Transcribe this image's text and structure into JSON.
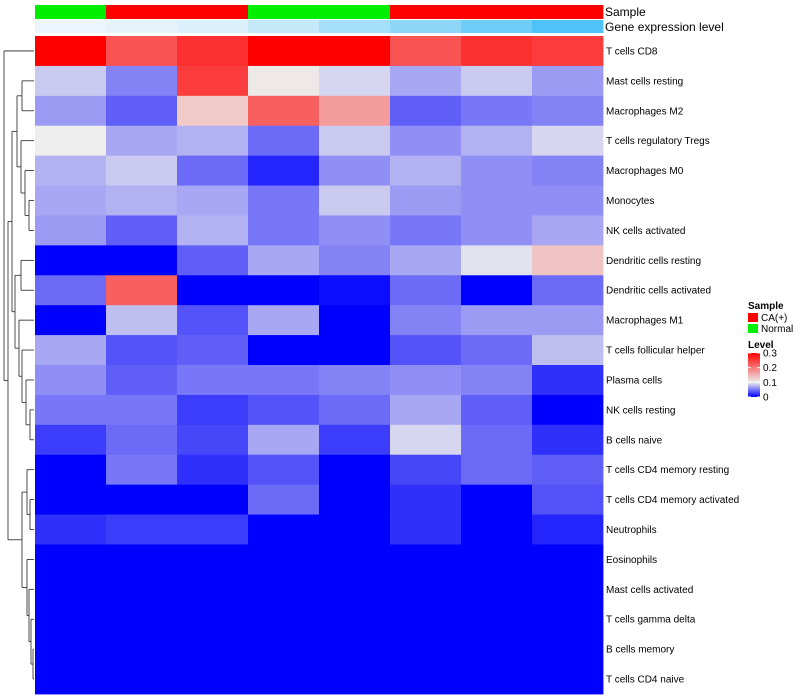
{
  "chart_data": {
    "type": "heatmap",
    "annotation_tracks": [
      {
        "name": "Sample",
        "values": [
          "Normal",
          "CA(+)",
          "CA(+)",
          "Normal",
          "Normal",
          "CA(+)",
          "CA(+)",
          "CA(+)"
        ]
      },
      {
        "name": "Gene expression level",
        "values": [
          0.02,
          0.05,
          0.12,
          0.25,
          0.45,
          0.6,
          0.8,
          1.0
        ]
      }
    ],
    "rows": [
      "T cells CD8",
      "Mast cells resting",
      "Macrophages M2",
      "T cells regulatory  Tregs",
      "Macrophages M0",
      "Monocytes",
      "NK cells activated",
      "Dendritic cells resting",
      "Dendritic cells activated",
      "Macrophages M1",
      "T cells follicular helper",
      "Plasma cells",
      "NK cells resting",
      "B cells naive",
      "T cells CD4 memory resting",
      "T cells CD4 memory activated",
      "Neutrophils",
      "Eosinophils",
      "Mast cells activated",
      "T cells gamma delta",
      "B cells memory",
      "T cells CD4 naive"
    ],
    "values": [
      [
        0.3,
        0.23,
        0.26,
        0.3,
        0.3,
        0.23,
        0.26,
        0.25
      ],
      [
        0.085,
        0.055,
        0.25,
        0.105,
        0.09,
        0.07,
        0.085,
        0.065
      ],
      [
        0.065,
        0.04,
        0.13,
        0.22,
        0.17,
        0.04,
        0.05,
        0.055
      ],
      [
        0.1,
        0.07,
        0.075,
        0.045,
        0.085,
        0.06,
        0.075,
        0.09
      ],
      [
        0.075,
        0.085,
        0.045,
        0.015,
        0.06,
        0.075,
        0.06,
        0.055
      ],
      [
        0.07,
        0.075,
        0.07,
        0.05,
        0.085,
        0.065,
        0.06,
        0.06
      ],
      [
        0.065,
        0.04,
        0.075,
        0.05,
        0.06,
        0.05,
        0.06,
        0.07
      ],
      [
        0.0,
        0.0,
        0.04,
        0.07,
        0.055,
        0.07,
        0.095,
        0.135
      ],
      [
        0.045,
        0.22,
        0.0,
        0.0,
        0.005,
        0.045,
        0.0,
        0.045
      ],
      [
        0.0,
        0.08,
        0.035,
        0.07,
        0.0,
        0.055,
        0.065,
        0.065
      ],
      [
        0.07,
        0.035,
        0.04,
        0.0,
        0.0,
        0.035,
        0.045,
        0.08
      ],
      [
        0.06,
        0.04,
        0.05,
        0.05,
        0.055,
        0.06,
        0.055,
        0.02
      ],
      [
        0.05,
        0.05,
        0.025,
        0.035,
        0.045,
        0.07,
        0.04,
        0.0
      ],
      [
        0.025,
        0.045,
        0.03,
        0.07,
        0.025,
        0.09,
        0.045,
        0.02
      ],
      [
        0.0,
        0.05,
        0.02,
        0.035,
        0.0,
        0.03,
        0.045,
        0.04
      ],
      [
        0.0,
        0.0,
        0.0,
        0.045,
        0.0,
        0.02,
        0.0,
        0.035
      ],
      [
        0.02,
        0.025,
        0.025,
        0.0,
        0.0,
        0.02,
        0.0,
        0.015
      ],
      [
        0.0,
        0.0,
        0.0,
        0.0,
        0.0,
        0.0,
        0.0,
        0.0
      ],
      [
        0.0,
        0.0,
        0.0,
        0.0,
        0.0,
        0.0,
        0.0,
        0.0
      ],
      [
        0.0,
        0.0,
        0.0,
        0.0,
        0.0,
        0.0,
        0.0,
        0.0
      ],
      [
        0.0,
        0.0,
        0.0,
        0.0,
        0.0,
        0.0,
        0.0,
        0.0
      ],
      [
        0.0,
        0.0,
        0.0,
        0.0,
        0.0,
        0.0,
        0.0,
        0.0
      ]
    ],
    "color_scale": {
      "min": 0,
      "mid": 0.1,
      "max": 0.3,
      "low_color": "#0000FF",
      "mid_color": "#EEEEEE",
      "high_color": "#FF0000"
    },
    "legend": {
      "position": "right",
      "sample_title": "Sample",
      "sample_entries": [
        {
          "label": "CA(+)",
          "color": "#FF0000"
        },
        {
          "label": "Normal",
          "color": "#00EE00"
        }
      ],
      "level_title": "Level",
      "level_ticks": [
        {
          "label": "0.3",
          "value": 0.3
        },
        {
          "label": "0.2",
          "value": 0.2
        },
        {
          "label": "0.1",
          "value": 0.1
        },
        {
          "label": "0",
          "value": 0.0
        }
      ]
    },
    "gene_expression_colors": {
      "low": "#EEF6FB",
      "high": "#4FC3F7"
    },
    "row_dendrogram": true,
    "column_dendrogram": false
  }
}
